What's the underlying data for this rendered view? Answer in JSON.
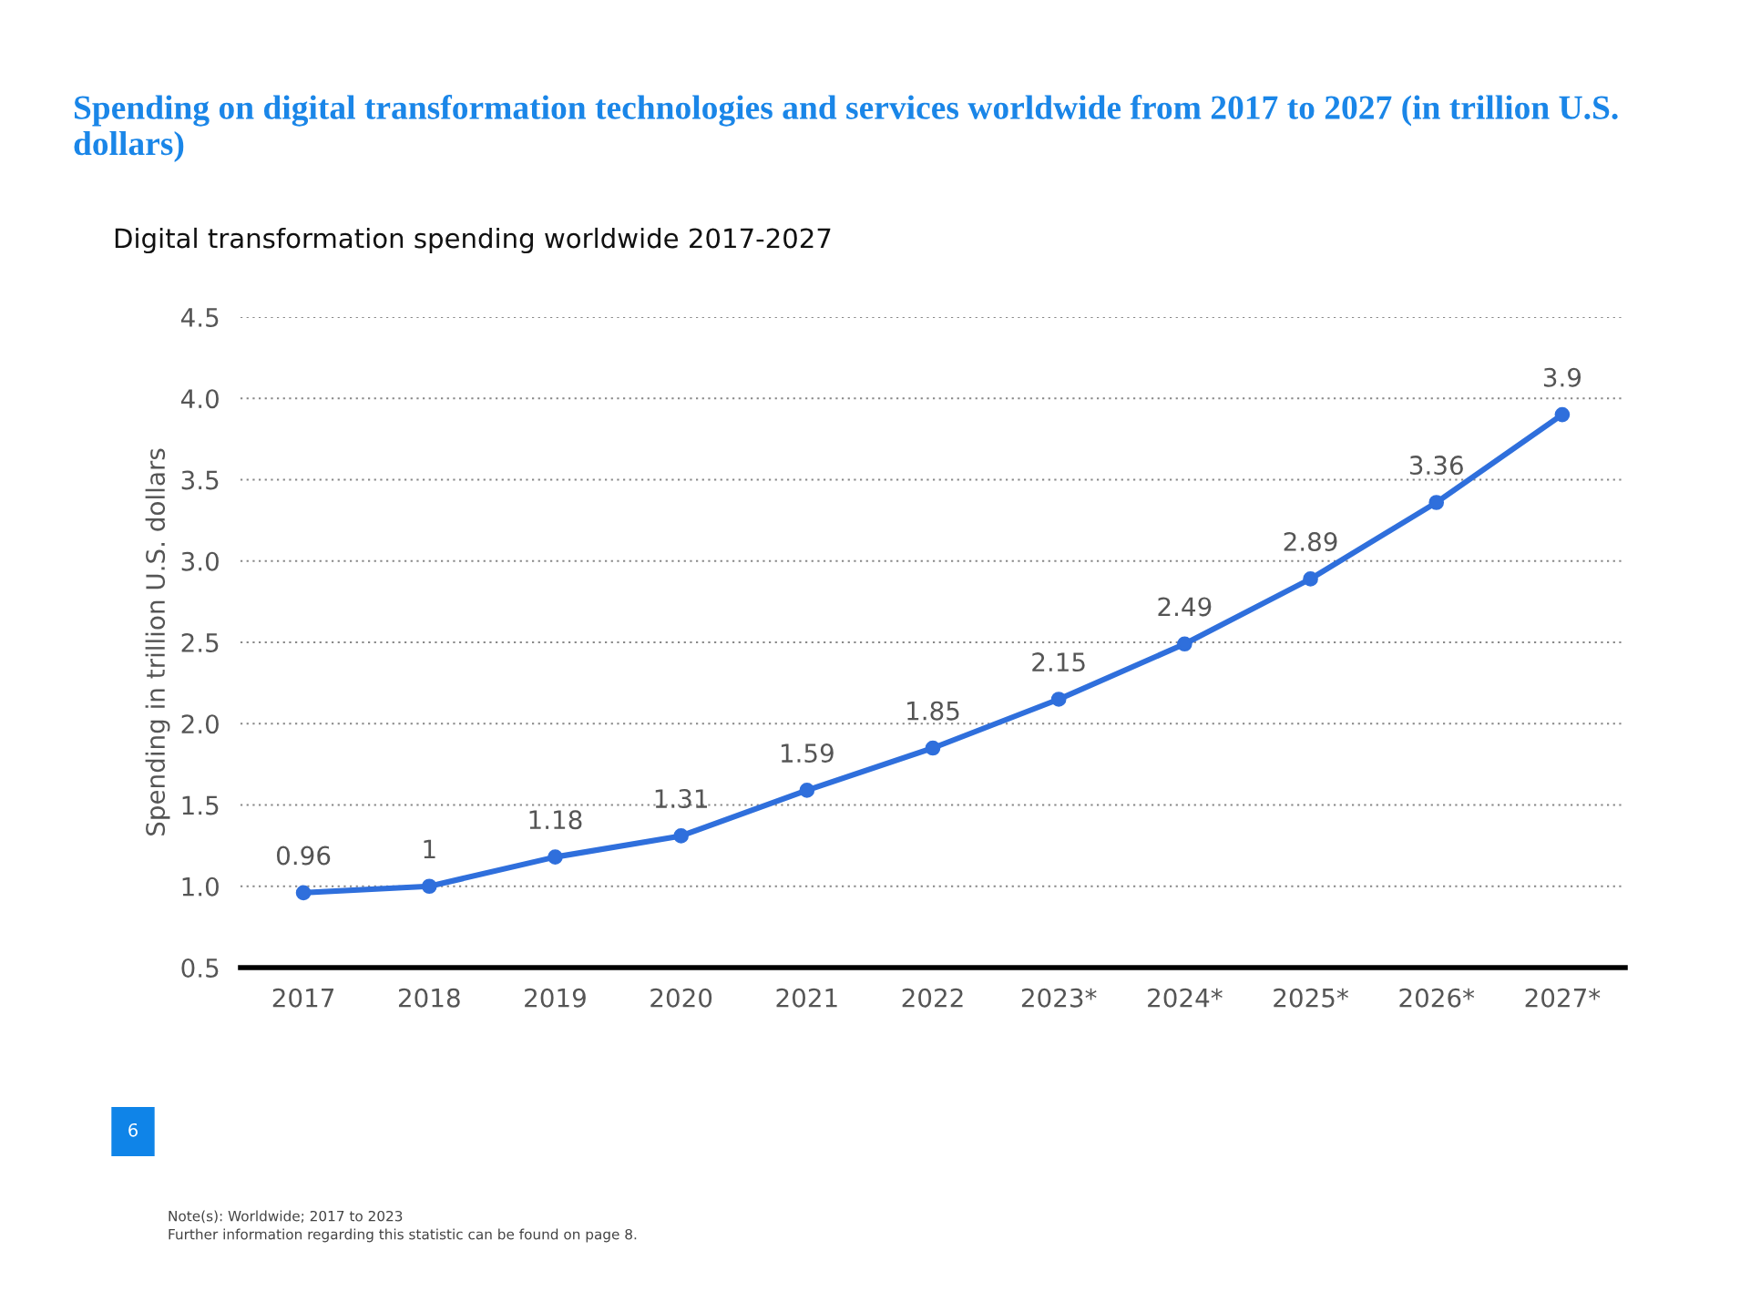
{
  "chart_data": {
    "type": "line",
    "title": "Spending on digital transformation technologies and services worldwide from 2017 to 2027 (in trillion U.S. dollars)",
    "subtitle": "Digital transformation spending worldwide 2017-2027",
    "ylabel": "Spending in trillion U.S. dollars",
    "categories": [
      "2017",
      "2018",
      "2019",
      "2020",
      "2021",
      "2022",
      "2023*",
      "2024*",
      "2025*",
      "2026*",
      "2027*"
    ],
    "series": [
      {
        "color": "#2f6fdc",
        "values": [
          0.96,
          1,
          1.18,
          1.31,
          1.59,
          1.85,
          2.15,
          2.49,
          2.89,
          3.36,
          3.9
        ]
      }
    ],
    "ylim": [
      0.5,
      4.5
    ],
    "yticks": [
      {
        "value": 0.5,
        "label": "0.5"
      },
      {
        "value": 1,
        "label": "1.0"
      },
      {
        "value": 1.5,
        "label": "1.5"
      },
      {
        "value": 2,
        "label": "2.0"
      },
      {
        "value": 2.5,
        "label": "2.5"
      },
      {
        "value": 3,
        "label": "3.0"
      },
      {
        "value": 3.5,
        "label": "3.5"
      },
      {
        "value": 4,
        "label": "4.0"
      },
      {
        "value": 4.5,
        "label": "4.5"
      }
    ],
    "grid": "y",
    "marker": "circle",
    "line_style": "solid",
    "data_labels": true,
    "annotations": [
      "6",
      "Note(s): Worldwide; 2017 to 2023",
      "Further information regarding this statistic can be found on page 8."
    ]
  }
}
